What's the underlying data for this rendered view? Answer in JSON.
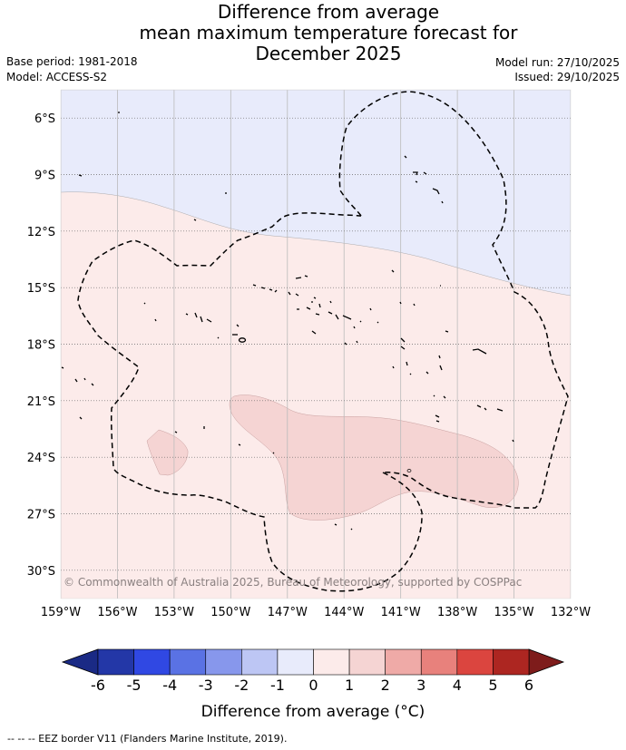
{
  "title": {
    "line1": "Difference from average",
    "line2": "mean maximum temperature forecast for",
    "line3": "December 2025"
  },
  "meta": {
    "base_period": "Base period: 1981-2018",
    "model": "Model: ACCESS-S2",
    "model_run": "Model run: 27/10/2025",
    "issued": "Issued: 29/10/2025"
  },
  "map": {
    "latitude_labels": [
      "6°S",
      "9°S",
      "12°S",
      "15°S",
      "18°S",
      "21°S",
      "24°S",
      "27°S",
      "30°S"
    ],
    "latitude_values": [
      -6,
      -9,
      -12,
      -15,
      -18,
      -21,
      -24,
      -27,
      -30
    ],
    "longitude_labels": [
      "159°W",
      "156°W",
      "153°W",
      "150°W",
      "147°W",
      "144°W",
      "141°W",
      "138°W",
      "135°W",
      "132°W"
    ],
    "longitude_values": [
      -159,
      -156,
      -153,
      -150,
      -147,
      -144,
      -141,
      -138,
      -135,
      -132
    ],
    "extent": {
      "lon": [
        -159,
        -132
      ],
      "lat": [
        -4.5,
        -31.5
      ]
    },
    "copyright": "© Commonwealth of Australia 2025, Bureau of Meteorology, supported by COSPPac",
    "colors": {
      "neg_0_1": "#e8ebfb",
      "pos_0_1": "#fcebea",
      "pos_1_2": "#f5d4d3",
      "grid": "#bbbbbb",
      "grid_dotted": "#666666"
    }
  },
  "colorbar": {
    "title": "Difference from average (°C)",
    "ticks": [
      "-6",
      "-5",
      "-4",
      "-3",
      "-2",
      "-1",
      "0",
      "1",
      "2",
      "3",
      "4",
      "5",
      "6"
    ],
    "colors": [
      "#2337a7",
      "#3048e3",
      "#5a72e4",
      "#8797ec",
      "#bdc6f4",
      "#e8ebfb",
      "#fcebea",
      "#f5d4d3",
      "#efaaa7",
      "#e8817c",
      "#db453f",
      "#ad2621"
    ],
    "under_color": "#1a2a85",
    "over_color": "#7e1c1b"
  },
  "footnote": "--  --  -- EEZ border V11 (Flanders Marine Institute, 2019)."
}
